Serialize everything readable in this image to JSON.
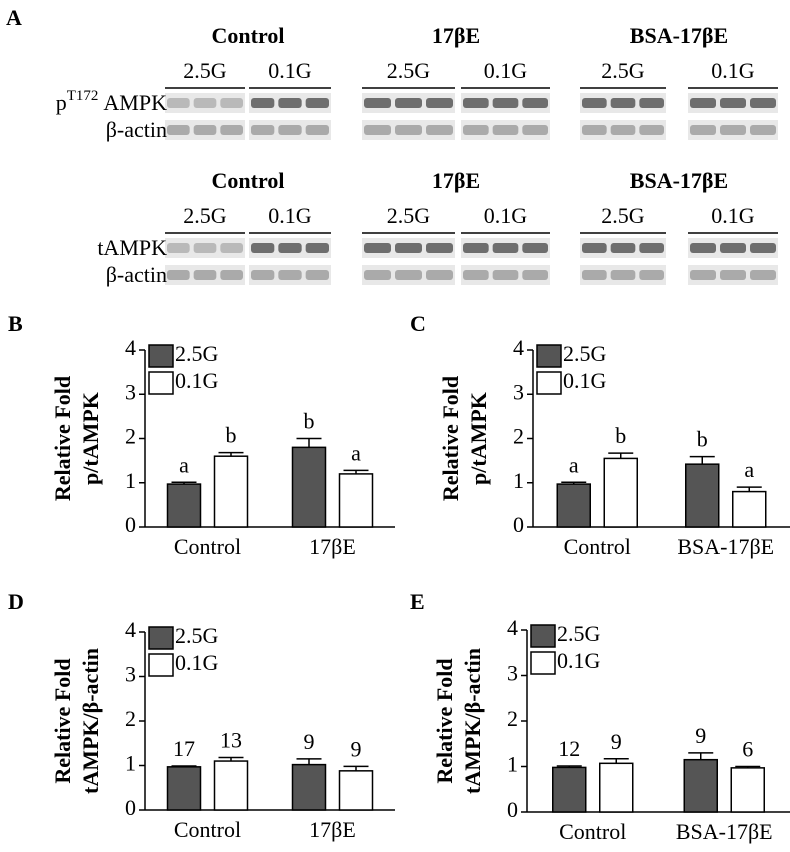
{
  "blot_panel": {
    "panel": "A",
    "blocks": [
      {
        "groups": [
          {
            "name": "Control",
            "conditions": [
              "2.5G",
              "0.1G"
            ]
          },
          {
            "name": "17βE",
            "conditions": [
              "2.5G",
              "0.1G"
            ]
          },
          {
            "name": "BSA-17βE",
            "conditions": [
              "2.5G",
              "0.1G"
            ]
          }
        ],
        "rows": [
          {
            "prefix": "p",
            "superscript": "T172",
            "text": "AMPK"
          },
          {
            "text": "β-actin"
          }
        ]
      },
      {
        "groups": [
          {
            "name": "Control",
            "conditions": [
              "2.5G",
              "0.1G"
            ]
          },
          {
            "name": "17βE",
            "conditions": [
              "2.5G",
              "0.1G"
            ]
          },
          {
            "name": "BSA-17βE",
            "conditions": [
              "2.5G",
              "0.1G"
            ]
          }
        ],
        "rows": [
          {
            "text": "tAMPK"
          },
          {
            "text": "β-actin"
          }
        ]
      }
    ]
  },
  "chart_data": [
    {
      "type": "bar",
      "panel": "B",
      "ylabel": [
        "Relative Fold",
        "p/tAMPK"
      ],
      "categories": [
        "Control",
        "17βE"
      ],
      "series": [
        {
          "name": "2.5G",
          "color": "#555555",
          "values": [
            0.97,
            1.8
          ],
          "errors": [
            0.04,
            0.2
          ],
          "annotations": [
            "a",
            "b"
          ]
        },
        {
          "name": "0.1G",
          "color": "#ffffff",
          "values": [
            1.6,
            1.2
          ],
          "errors": [
            0.08,
            0.08
          ],
          "annotations": [
            "b",
            "a"
          ]
        }
      ],
      "ylim": [
        0,
        4
      ],
      "yticks": [
        0,
        1,
        2,
        3,
        4
      ],
      "legend": "upper left"
    },
    {
      "type": "bar",
      "panel": "C",
      "ylabel": [
        "Relative Fold",
        "p/tAMPK"
      ],
      "categories": [
        "Control",
        "BSA-17βE"
      ],
      "series": [
        {
          "name": "2.5G",
          "color": "#555555",
          "values": [
            0.97,
            1.42
          ],
          "errors": [
            0.04,
            0.17
          ],
          "annotations": [
            "a",
            "b"
          ]
        },
        {
          "name": "0.1G",
          "color": "#ffffff",
          "values": [
            1.55,
            0.8
          ],
          "errors": [
            0.12,
            0.1
          ],
          "annotations": [
            "b",
            "a"
          ]
        }
      ],
      "ylim": [
        0,
        4
      ],
      "yticks": [
        0,
        1,
        2,
        3,
        4
      ],
      "legend": "upper left"
    },
    {
      "type": "bar",
      "panel": "D",
      "ylabel": [
        "Relative Fold",
        "tAMPK/β-actin"
      ],
      "categories": [
        "Control",
        "17βE"
      ],
      "series": [
        {
          "name": "2.5G",
          "color": "#555555",
          "values": [
            0.97,
            1.02
          ],
          "errors": [
            0.02,
            0.13
          ],
          "annotations": [
            "17",
            "9"
          ]
        },
        {
          "name": "0.1G",
          "color": "#ffffff",
          "values": [
            1.1,
            0.88
          ],
          "errors": [
            0.08,
            0.1
          ],
          "annotations": [
            "13",
            "9"
          ]
        }
      ],
      "ylim": [
        0,
        4
      ],
      "yticks": [
        0,
        1,
        2,
        3,
        4
      ],
      "legend": "upper left"
    },
    {
      "type": "bar",
      "panel": "E",
      "ylabel": [
        "Relative Fold",
        "tAMPK/β-actin"
      ],
      "categories": [
        "Control",
        "BSA-17βE"
      ],
      "series": [
        {
          "name": "2.5G",
          "color": "#555555",
          "values": [
            0.98,
            1.15
          ],
          "errors": [
            0.03,
            0.15
          ],
          "annotations": [
            "12",
            "9"
          ]
        },
        {
          "name": "0.1G",
          "color": "#ffffff",
          "values": [
            1.07,
            0.97
          ],
          "errors": [
            0.1,
            0.03
          ],
          "annotations": [
            "9",
            "6"
          ]
        }
      ],
      "ylim": [
        0,
        4
      ],
      "yticks": [
        0,
        1,
        2,
        3,
        4
      ],
      "legend": "upper left"
    }
  ]
}
